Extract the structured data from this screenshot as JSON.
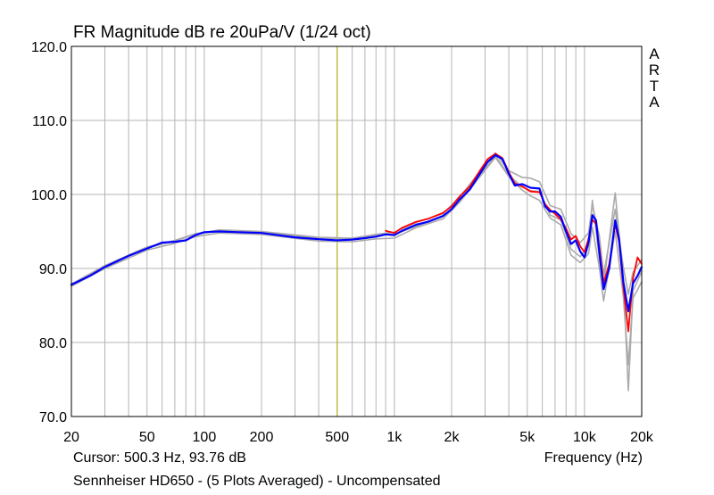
{
  "chart_data": {
    "type": "line",
    "title": "FR Magnitude dB re 20uPa/V (1/24 oct)",
    "xlabel": "Frequency (Hz)",
    "ylabel": "",
    "xscale": "log",
    "xlim": [
      20,
      20000
    ],
    "ylim": [
      70,
      120
    ],
    "grid": true,
    "x_ticks": [
      {
        "v": 20,
        "label": "20"
      },
      {
        "v": 50,
        "label": "50"
      },
      {
        "v": 100,
        "label": "100"
      },
      {
        "v": 200,
        "label": "200"
      },
      {
        "v": 500,
        "label": "500"
      },
      {
        "v": 1000,
        "label": "1k"
      },
      {
        "v": 2000,
        "label": "2k"
      },
      {
        "v": 5000,
        "label": "5k"
      },
      {
        "v": 10000,
        "label": "10k"
      },
      {
        "v": 20000,
        "label": "20k"
      }
    ],
    "y_ticks": [
      {
        "v": 70,
        "label": "70.0"
      },
      {
        "v": 80,
        "label": "80.0"
      },
      {
        "v": 90,
        "label": "90.0"
      },
      {
        "v": 100,
        "label": "100.0"
      },
      {
        "v": 110,
        "label": "110.0"
      },
      {
        "v": 120,
        "label": "120.0"
      }
    ],
    "cursor_x": 500.3,
    "cursor_text": "Cursor: 500.3 Hz, 93.76 dB",
    "brand_letters": [
      "A",
      "R",
      "T",
      "A"
    ],
    "footer": "Sennheiser HD650 - (5 Plots Averaged) - Uncompensated",
    "colors": {
      "individual": "#aaaaaa",
      "compensated": "#ff0000",
      "average": "#0000ff",
      "cursor": "#b0b000",
      "grid": "#b4b4b4"
    },
    "series": [
      {
        "role": "average",
        "values": [
          [
            20,
            87.8
          ],
          [
            25,
            89.0
          ],
          [
            30,
            90.2
          ],
          [
            40,
            91.7
          ],
          [
            50,
            92.7
          ],
          [
            60,
            93.5
          ],
          [
            70,
            93.6
          ],
          [
            80,
            93.8
          ],
          [
            90,
            94.5
          ],
          [
            100,
            94.9
          ],
          [
            120,
            95.0
          ],
          [
            150,
            94.9
          ],
          [
            200,
            94.8
          ],
          [
            300,
            94.2
          ],
          [
            400,
            93.95
          ],
          [
            500,
            93.8
          ],
          [
            600,
            93.9
          ],
          [
            700,
            94.1
          ],
          [
            800,
            94.3
          ],
          [
            900,
            94.6
          ],
          [
            1000,
            94.5
          ],
          [
            1100,
            95.1
          ],
          [
            1300,
            95.9
          ],
          [
            1500,
            96.3
          ],
          [
            1800,
            97.1
          ],
          [
            2000,
            98.0
          ],
          [
            2200,
            99.3
          ],
          [
            2500,
            100.7
          ],
          [
            2800,
            102.7
          ],
          [
            3100,
            104.4
          ],
          [
            3400,
            105.3
          ],
          [
            3700,
            104.8
          ],
          [
            4000,
            102.8
          ],
          [
            4300,
            101.2
          ],
          [
            4700,
            101.4
          ],
          [
            5200,
            100.9
          ],
          [
            5800,
            100.8
          ],
          [
            6200,
            98.4
          ],
          [
            6600,
            97.7
          ],
          [
            7000,
            97.7
          ],
          [
            7500,
            97.0
          ],
          [
            8000,
            95.0
          ],
          [
            8500,
            93.3
          ],
          [
            9000,
            93.8
          ],
          [
            9500,
            92.3
          ],
          [
            10000,
            91.5
          ],
          [
            10500,
            93.5
          ],
          [
            11000,
            97.2
          ],
          [
            11500,
            96.5
          ],
          [
            12000,
            92.0
          ],
          [
            12600,
            87.2
          ],
          [
            13500,
            90.0
          ],
          [
            14500,
            96.5
          ],
          [
            15200,
            94.0
          ],
          [
            16000,
            88.2
          ],
          [
            17000,
            84.2
          ],
          [
            18000,
            88.0
          ],
          [
            19000,
            89.0
          ],
          [
            20000,
            90.2
          ]
        ]
      },
      {
        "role": "compensated",
        "values": [
          [
            900,
            95.1
          ],
          [
            1000,
            94.8
          ],
          [
            1100,
            95.5
          ],
          [
            1300,
            96.3
          ],
          [
            1500,
            96.7
          ],
          [
            1800,
            97.5
          ],
          [
            2000,
            98.4
          ],
          [
            2200,
            99.7
          ],
          [
            2500,
            101.1
          ],
          [
            2800,
            103.1
          ],
          [
            3100,
            104.8
          ],
          [
            3400,
            105.5
          ],
          [
            3700,
            104.9
          ],
          [
            4000,
            103.0
          ],
          [
            4300,
            101.5
          ],
          [
            4700,
            101.1
          ],
          [
            5200,
            100.4
          ],
          [
            5800,
            100.3
          ],
          [
            6200,
            98.7
          ],
          [
            6600,
            97.9
          ],
          [
            7000,
            97.4
          ],
          [
            7500,
            96.6
          ],
          [
            8000,
            95.4
          ],
          [
            8500,
            93.9
          ],
          [
            9000,
            94.4
          ],
          [
            9500,
            93.0
          ],
          [
            10000,
            92.2
          ],
          [
            10500,
            94.0
          ],
          [
            11000,
            96.6
          ],
          [
            11500,
            96.0
          ],
          [
            12000,
            92.6
          ],
          [
            12600,
            88.0
          ],
          [
            13500,
            90.6
          ],
          [
            14500,
            96.0
          ],
          [
            15200,
            93.6
          ],
          [
            16000,
            87.6
          ],
          [
            17000,
            81.5
          ],
          [
            18000,
            88.7
          ],
          [
            19000,
            91.5
          ],
          [
            20000,
            90.6
          ]
        ]
      },
      {
        "role": "individual",
        "values": [
          [
            20,
            87.9
          ],
          [
            30,
            90.4
          ],
          [
            50,
            92.9
          ],
          [
            70,
            93.8
          ],
          [
            90,
            94.7
          ],
          [
            120,
            95.2
          ],
          [
            200,
            95.0
          ],
          [
            400,
            94.2
          ],
          [
            600,
            94.1
          ],
          [
            800,
            94.6
          ],
          [
            1000,
            94.9
          ],
          [
            1300,
            96.2
          ],
          [
            1800,
            97.4
          ],
          [
            2200,
            99.6
          ],
          [
            2800,
            103.0
          ],
          [
            3400,
            105.6
          ],
          [
            4000,
            103.2
          ],
          [
            4700,
            102.3
          ],
          [
            5200,
            102.2
          ],
          [
            5800,
            101.7
          ],
          [
            6600,
            98.5
          ],
          [
            7500,
            98.0
          ],
          [
            8500,
            94.7
          ],
          [
            9500,
            93.5
          ],
          [
            10500,
            94.8
          ],
          [
            11000,
            98.6
          ],
          [
            12000,
            94.3
          ],
          [
            12600,
            89.2
          ],
          [
            14500,
            98.0
          ],
          [
            16000,
            90.2
          ],
          [
            17000,
            86.5
          ],
          [
            18000,
            89.5
          ],
          [
            20000,
            91.2
          ]
        ]
      },
      {
        "role": "individual",
        "values": [
          [
            20,
            87.6
          ],
          [
            30,
            90.0
          ],
          [
            50,
            92.5
          ],
          [
            70,
            93.4
          ],
          [
            90,
            94.3
          ],
          [
            120,
            94.8
          ],
          [
            200,
            94.6
          ],
          [
            400,
            93.7
          ],
          [
            600,
            93.6
          ],
          [
            800,
            94.0
          ],
          [
            1000,
            94.1
          ],
          [
            1300,
            95.5
          ],
          [
            1800,
            96.7
          ],
          [
            2200,
            98.9
          ],
          [
            2800,
            102.3
          ],
          [
            3400,
            105.0
          ],
          [
            4000,
            102.4
          ],
          [
            4700,
            100.6
          ],
          [
            5200,
            99.8
          ],
          [
            5800,
            99.2
          ],
          [
            6600,
            96.8
          ],
          [
            7500,
            95.9
          ],
          [
            8500,
            91.8
          ],
          [
            9500,
            90.8
          ],
          [
            10500,
            92.0
          ],
          [
            11000,
            95.6
          ],
          [
            12000,
            90.0
          ],
          [
            12600,
            85.6
          ],
          [
            14500,
            95.0
          ],
          [
            16000,
            86.2
          ],
          [
            17000,
            77.0
          ],
          [
            18000,
            86.0
          ],
          [
            20000,
            88.2
          ]
        ]
      },
      {
        "role": "individual",
        "values": [
          [
            20,
            87.8
          ],
          [
            30,
            90.3
          ],
          [
            50,
            92.8
          ],
          [
            70,
            93.7
          ],
          [
            90,
            94.6
          ],
          [
            120,
            95.1
          ],
          [
            200,
            94.9
          ],
          [
            400,
            94.1
          ],
          [
            600,
            94.0
          ],
          [
            800,
            94.5
          ],
          [
            1000,
            94.6
          ],
          [
            1300,
            95.7
          ],
          [
            1800,
            97.0
          ],
          [
            2200,
            99.2
          ],
          [
            2800,
            102.5
          ],
          [
            3400,
            105.2
          ],
          [
            4000,
            102.6
          ],
          [
            4700,
            101.0
          ],
          [
            5200,
            100.5
          ],
          [
            5800,
            100.4
          ],
          [
            6600,
            97.2
          ],
          [
            7500,
            96.6
          ],
          [
            8500,
            92.6
          ],
          [
            9500,
            91.6
          ],
          [
            10500,
            93.0
          ],
          [
            11000,
            99.2
          ],
          [
            12000,
            91.2
          ],
          [
            12600,
            87.8
          ],
          [
            14500,
            100.2
          ],
          [
            16000,
            88.6
          ],
          [
            17000,
            73.5
          ],
          [
            18000,
            87.0
          ],
          [
            20000,
            89.6
          ]
        ]
      }
    ]
  }
}
